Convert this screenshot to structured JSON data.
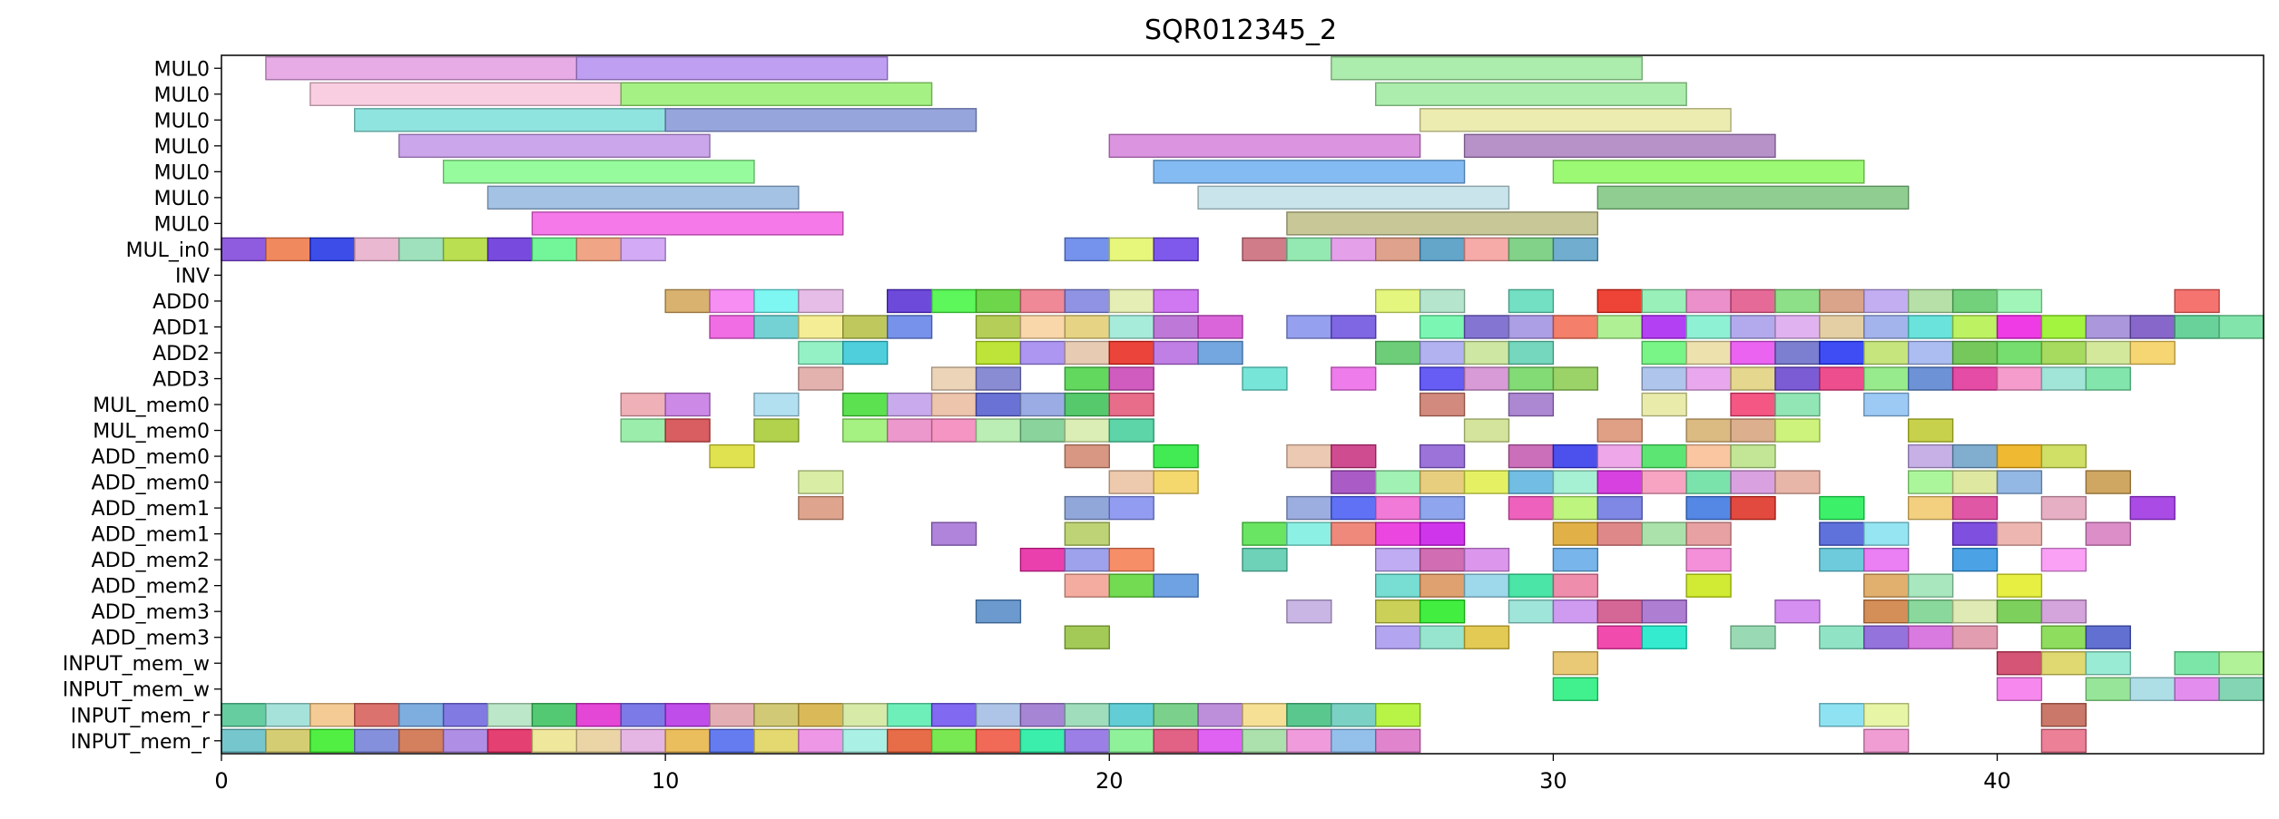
{
  "chart_data": {
    "type": "gantt",
    "title": "SQR012345_2",
    "xlim": [
      0,
      46
    ],
    "x_ticks": [
      0,
      10,
      20,
      30,
      40
    ],
    "grid": false,
    "rows": [
      "MUL0",
      "MUL0",
      "MUL0",
      "MUL0",
      "MUL0",
      "MUL0",
      "MUL0",
      "MUL_in0",
      "INV",
      "ADD0",
      "ADD1",
      "ADD2",
      "ADD3",
      "MUL_mem0",
      "MUL_mem0",
      "ADD_mem0",
      "ADD_mem0",
      "ADD_mem1",
      "ADD_mem1",
      "ADD_mem2",
      "ADD_mem2",
      "ADD_mem3",
      "ADD_mem3",
      "INPUT_mem_w",
      "INPUT_mem_w",
      "INPUT_mem_r",
      "INPUT_mem_r"
    ],
    "palette": [
      "#e39ee0",
      "#b48ef0",
      "#9ee99e",
      "#f8c6dc",
      "#96ef6e",
      "#7ddfd9",
      "#8595d7",
      "#eae9a2",
      "#c297e8",
      "#d581d9",
      "#a97fc0",
      "#84fa8c",
      "#6eaff0",
      "#8af85c",
      "#93b7df",
      "#bfdfe6",
      "#7cc47e",
      "#f461e5",
      "#bdbd86",
      "#cc5b6a",
      "#97a860",
      "#6f86ec",
      "#ee9c74",
      "#8a6a60",
      "#aab36a",
      "#d8889e"
    ],
    "tasks": [
      {
        "row": 0,
        "start": 1,
        "end": 8,
        "c": 0
      },
      {
        "row": 0,
        "start": 8,
        "end": 15,
        "c": 1
      },
      {
        "row": 0,
        "start": 25,
        "end": 32,
        "c": 2
      },
      {
        "row": 1,
        "start": 2,
        "end": 9,
        "c": 3
      },
      {
        "row": 1,
        "start": 9,
        "end": 16,
        "c": 4
      },
      {
        "row": 1,
        "start": 26,
        "end": 33,
        "c": 2
      },
      {
        "row": 2,
        "start": 3,
        "end": 10,
        "c": 5
      },
      {
        "row": 2,
        "start": 10,
        "end": 17,
        "c": 6
      },
      {
        "row": 2,
        "start": 27,
        "end": 34,
        "c": 7
      },
      {
        "row": 3,
        "start": 4,
        "end": 11,
        "c": 8
      },
      {
        "row": 3,
        "start": 20,
        "end": 27,
        "c": 9
      },
      {
        "row": 3,
        "start": 28,
        "end": 35,
        "c": 10
      },
      {
        "row": 4,
        "start": 5,
        "end": 12,
        "c": 11
      },
      {
        "row": 4,
        "start": 21,
        "end": 28,
        "c": 12
      },
      {
        "row": 4,
        "start": 30,
        "end": 37,
        "c": 13
      },
      {
        "row": 5,
        "start": 6,
        "end": 13,
        "c": 14
      },
      {
        "row": 5,
        "start": 22,
        "end": 29,
        "c": 15
      },
      {
        "row": 5,
        "start": 31,
        "end": 38,
        "c": 16
      },
      {
        "row": 6,
        "start": 7,
        "end": 14,
        "c": 17
      },
      {
        "row": 6,
        "start": 24,
        "end": 31,
        "c": 18
      },
      {
        "row": 7,
        "start": 0,
        "end": 10,
        "c": -1
      },
      {
        "row": 7,
        "start": 19,
        "end": 22,
        "c": -1
      },
      {
        "row": 7,
        "start": 23,
        "end": 29,
        "c": -1
      },
      {
        "row": 7,
        "start": 29,
        "end": 31,
        "c": -1
      },
      {
        "row": 9,
        "start": 10,
        "end": 14,
        "c": -1
      },
      {
        "row": 9,
        "start": 15,
        "end": 22,
        "c": -1
      },
      {
        "row": 9,
        "start": 26,
        "end": 28,
        "c": -1
      },
      {
        "row": 9,
        "start": 29,
        "end": 30,
        "c": -1
      },
      {
        "row": 9,
        "start": 31,
        "end": 41,
        "c": -1
      },
      {
        "row": 9,
        "start": 44,
        "end": 45,
        "c": -1
      },
      {
        "row": 10,
        "start": 11,
        "end": 16,
        "c": -1
      },
      {
        "row": 10,
        "start": 17,
        "end": 23,
        "c": -1
      },
      {
        "row": 10,
        "start": 24,
        "end": 26,
        "c": -1
      },
      {
        "row": 10,
        "start": 27,
        "end": 46,
        "c": -1
      },
      {
        "row": 11,
        "start": 13,
        "end": 15,
        "c": -1
      },
      {
        "row": 11,
        "start": 17,
        "end": 23,
        "c": -1
      },
      {
        "row": 11,
        "start": 26,
        "end": 30,
        "c": -1
      },
      {
        "row": 11,
        "start": 32,
        "end": 44,
        "c": -1
      },
      {
        "row": 12,
        "start": 13,
        "end": 14,
        "c": -1
      },
      {
        "row": 12,
        "start": 16,
        "end": 18,
        "c": -1
      },
      {
        "row": 12,
        "start": 19,
        "end": 21,
        "c": -1
      },
      {
        "row": 12,
        "start": 23,
        "end": 24,
        "c": -1
      },
      {
        "row": 12,
        "start": 25,
        "end": 26,
        "c": -1
      },
      {
        "row": 12,
        "start": 27,
        "end": 31,
        "c": -1
      },
      {
        "row": 12,
        "start": 32,
        "end": 43,
        "c": -1
      },
      {
        "row": 13,
        "start": 9,
        "end": 11,
        "c": -1
      },
      {
        "row": 13,
        "start": 12,
        "end": 13,
        "c": -1
      },
      {
        "row": 13,
        "start": 14,
        "end": 21,
        "c": -1
      },
      {
        "row": 13,
        "start": 27,
        "end": 28,
        "c": -1
      },
      {
        "row": 13,
        "start": 29,
        "end": 30,
        "c": -1
      },
      {
        "row": 13,
        "start": 32,
        "end": 33,
        "c": -1
      },
      {
        "row": 13,
        "start": 34,
        "end": 36,
        "c": -1
      },
      {
        "row": 13,
        "start": 37,
        "end": 38,
        "c": -1
      },
      {
        "row": 14,
        "start": 9,
        "end": 11,
        "c": -1
      },
      {
        "row": 14,
        "start": 12,
        "end": 13,
        "c": -1
      },
      {
        "row": 14,
        "start": 14,
        "end": 21,
        "c": -1
      },
      {
        "row": 14,
        "start": 28,
        "end": 29,
        "c": -1
      },
      {
        "row": 14,
        "start": 31,
        "end": 32,
        "c": -1
      },
      {
        "row": 14,
        "start": 33,
        "end": 36,
        "c": -1
      },
      {
        "row": 14,
        "start": 38,
        "end": 39,
        "c": -1
      },
      {
        "row": 15,
        "start": 11,
        "end": 12,
        "c": -1
      },
      {
        "row": 15,
        "start": 19,
        "end": 20,
        "c": -1
      },
      {
        "row": 15,
        "start": 21,
        "end": 22,
        "c": -1
      },
      {
        "row": 15,
        "start": 24,
        "end": 26,
        "c": -1
      },
      {
        "row": 15,
        "start": 27,
        "end": 28,
        "c": -1
      },
      {
        "row": 15,
        "start": 29,
        "end": 35,
        "c": -1
      },
      {
        "row": 15,
        "start": 38,
        "end": 42,
        "c": -1
      },
      {
        "row": 16,
        "start": 13,
        "end": 14,
        "c": -1
      },
      {
        "row": 16,
        "start": 20,
        "end": 22,
        "c": -1
      },
      {
        "row": 16,
        "start": 25,
        "end": 36,
        "c": -1
      },
      {
        "row": 16,
        "start": 38,
        "end": 41,
        "c": -1
      },
      {
        "row": 16,
        "start": 42,
        "end": 43,
        "c": -1
      },
      {
        "row": 17,
        "start": 13,
        "end": 14,
        "c": -1
      },
      {
        "row": 17,
        "start": 19,
        "end": 21,
        "c": -1
      },
      {
        "row": 17,
        "start": 24,
        "end": 28,
        "c": -1
      },
      {
        "row": 17,
        "start": 29,
        "end": 32,
        "c": -1
      },
      {
        "row": 17,
        "start": 33,
        "end": 35,
        "c": -1
      },
      {
        "row": 17,
        "start": 36,
        "end": 37,
        "c": -1
      },
      {
        "row": 17,
        "start": 38,
        "end": 40,
        "c": -1
      },
      {
        "row": 17,
        "start": 41,
        "end": 42,
        "c": -1
      },
      {
        "row": 17,
        "start": 43,
        "end": 44,
        "c": -1
      },
      {
        "row": 18,
        "start": 16,
        "end": 17,
        "c": -1
      },
      {
        "row": 18,
        "start": 19,
        "end": 20,
        "c": -1
      },
      {
        "row": 18,
        "start": 23,
        "end": 28,
        "c": -1
      },
      {
        "row": 18,
        "start": 30,
        "end": 34,
        "c": -1
      },
      {
        "row": 18,
        "start": 36,
        "end": 38,
        "c": -1
      },
      {
        "row": 18,
        "start": 39,
        "end": 41,
        "c": -1
      },
      {
        "row": 18,
        "start": 42,
        "end": 43,
        "c": -1
      },
      {
        "row": 19,
        "start": 18,
        "end": 21,
        "c": -1
      },
      {
        "row": 19,
        "start": 23,
        "end": 24,
        "c": -1
      },
      {
        "row": 19,
        "start": 26,
        "end": 29,
        "c": -1
      },
      {
        "row": 19,
        "start": 30,
        "end": 31,
        "c": -1
      },
      {
        "row": 19,
        "start": 33,
        "end": 34,
        "c": -1
      },
      {
        "row": 19,
        "start": 36,
        "end": 38,
        "c": -1
      },
      {
        "row": 19,
        "start": 39,
        "end": 40,
        "c": -1
      },
      {
        "row": 19,
        "start": 41,
        "end": 42,
        "c": -1
      },
      {
        "row": 20,
        "start": 19,
        "end": 22,
        "c": -1
      },
      {
        "row": 20,
        "start": 26,
        "end": 31,
        "c": -1
      },
      {
        "row": 20,
        "start": 33,
        "end": 34,
        "c": -1
      },
      {
        "row": 20,
        "start": 37,
        "end": 39,
        "c": -1
      },
      {
        "row": 20,
        "start": 40,
        "end": 41,
        "c": -1
      },
      {
        "row": 21,
        "start": 17,
        "end": 18,
        "c": -1
      },
      {
        "row": 21,
        "start": 24,
        "end": 25,
        "c": -1
      },
      {
        "row": 21,
        "start": 26,
        "end": 28,
        "c": -1
      },
      {
        "row": 21,
        "start": 29,
        "end": 33,
        "c": -1
      },
      {
        "row": 21,
        "start": 35,
        "end": 36,
        "c": -1
      },
      {
        "row": 21,
        "start": 37,
        "end": 42,
        "c": -1
      },
      {
        "row": 22,
        "start": 19,
        "end": 20,
        "c": -1
      },
      {
        "row": 22,
        "start": 26,
        "end": 29,
        "c": -1
      },
      {
        "row": 22,
        "start": 31,
        "end": 33,
        "c": -1
      },
      {
        "row": 22,
        "start": 34,
        "end": 35,
        "c": -1
      },
      {
        "row": 22,
        "start": 36,
        "end": 40,
        "c": -1
      },
      {
        "row": 22,
        "start": 41,
        "end": 43,
        "c": -1
      },
      {
        "row": 23,
        "start": 30,
        "end": 31,
        "c": -1
      },
      {
        "row": 23,
        "start": 40,
        "end": 43,
        "c": -1
      },
      {
        "row": 23,
        "start": 44,
        "end": 46,
        "c": -1
      },
      {
        "row": 24,
        "start": 30,
        "end": 31,
        "c": -1
      },
      {
        "row": 24,
        "start": 40,
        "end": 41,
        "c": -1
      },
      {
        "row": 24,
        "start": 42,
        "end": 46,
        "c": -1
      },
      {
        "row": 25,
        "start": 0,
        "end": 27,
        "c": -1
      },
      {
        "row": 25,
        "start": 36,
        "end": 38,
        "c": -1
      },
      {
        "row": 25,
        "start": 41,
        "end": 42,
        "c": -1
      },
      {
        "row": 26,
        "start": 0,
        "end": 27,
        "c": -1
      },
      {
        "row": 26,
        "start": 37,
        "end": 38,
        "c": -1
      },
      {
        "row": 26,
        "start": 41,
        "end": 42,
        "c": -1
      }
    ]
  }
}
